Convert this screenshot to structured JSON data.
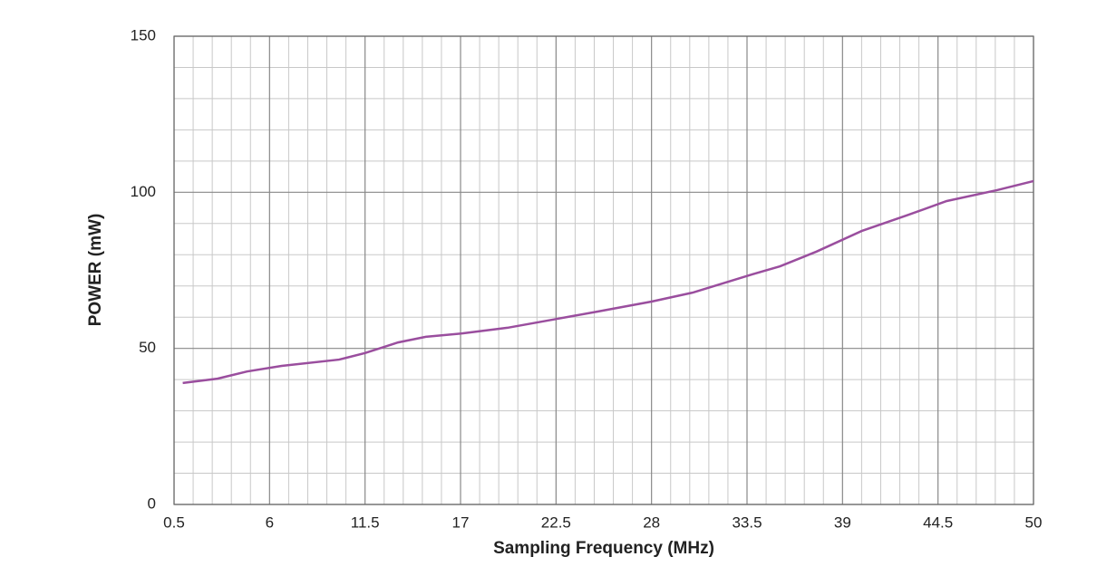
{
  "chart_data": {
    "type": "line",
    "x_label": "Sampling Frequency (MHz)",
    "y_label": "POWER (mW)",
    "x": [
      1,
      3,
      4.7,
      6.7,
      10,
      11.5,
      13.4,
      15,
      17.1,
      19.7,
      22.6,
      24.9,
      28,
      30.4,
      33.8,
      35.4,
      37.5,
      40.1,
      42.7,
      45,
      47.9,
      50
    ],
    "series": [
      {
        "color": "#9a4e9e",
        "values": [
          38.9,
          40.3,
          42.6,
          44.4,
          46.4,
          48.5,
          51.9,
          53.7,
          54.8,
          56.6,
          59.5,
          61.8,
          65,
          67.9,
          73.7,
          76.3,
          81,
          87.6,
          92.6,
          97.2,
          100.7,
          103.6
        ]
      }
    ],
    "xlim": [
      0.5,
      50
    ],
    "xticks": [
      0.5,
      6,
      11.5,
      17,
      22.5,
      28,
      33.5,
      39,
      44.5,
      50
    ],
    "ylim": [
      0,
      150
    ],
    "yticks": [
      0,
      50,
      100,
      150
    ],
    "grid": true
  }
}
